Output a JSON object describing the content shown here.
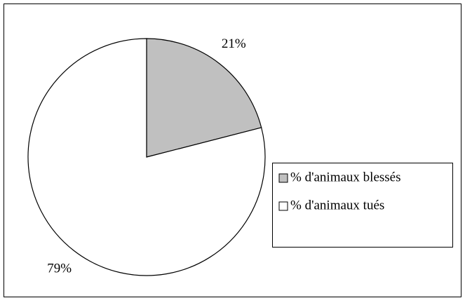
{
  "chart_data": {
    "type": "pie",
    "categories": [
      "% d'animaux blessés",
      "% d'animaux tués"
    ],
    "values": [
      21,
      79
    ],
    "value_labels": [
      "21%",
      "79%"
    ],
    "colors": [
      "#c0c0c0",
      "#ffffff"
    ],
    "legend": "right"
  }
}
